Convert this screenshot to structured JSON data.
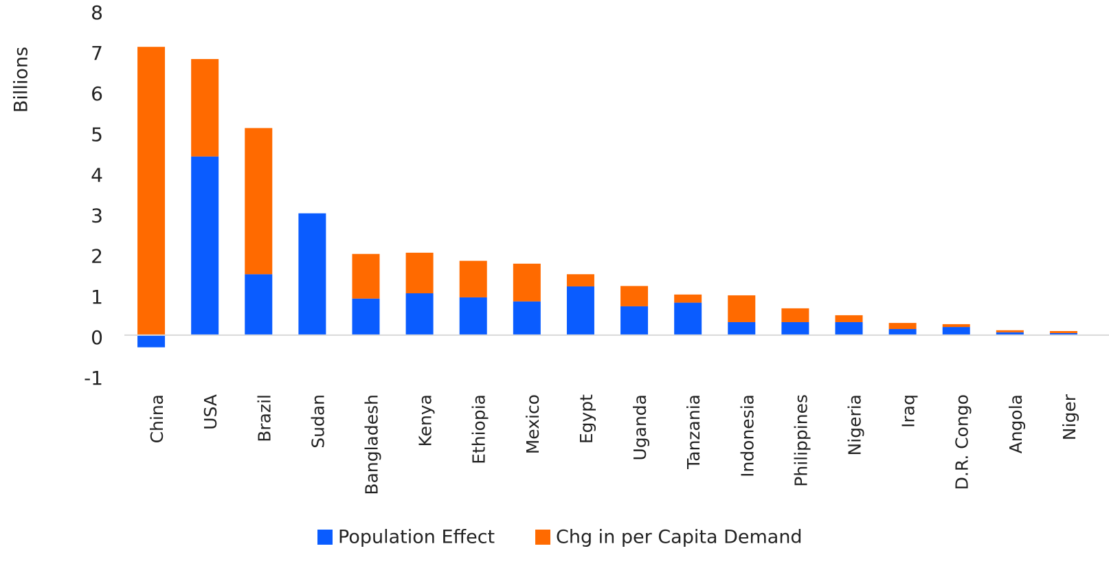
{
  "chart_data": {
    "type": "stacked_bar",
    "y_label": "Billions",
    "categories": [
      "China",
      "USA",
      "Brazil",
      "Sudan",
      "Bangladesh",
      "Kenya",
      "Ethiopia",
      "Mexico",
      "Egypt",
      "Uganda",
      "Tanzania",
      "Indonesia",
      "Philippines",
      "Nigeria",
      "Iraq",
      "D.R. Congo",
      "Angola",
      "Niger"
    ],
    "series": [
      {
        "name": "Population Effect",
        "color": "#0a5cff",
        "values": [
          -0.3,
          4.4,
          1.5,
          3.0,
          0.9,
          1.03,
          0.93,
          0.83,
          1.2,
          0.71,
          0.8,
          0.32,
          0.32,
          0.32,
          0.15,
          0.2,
          0.07,
          0.05
        ]
      },
      {
        "name": "Chg in per Capita Demand",
        "color": "#ff6a00",
        "values": [
          7.1,
          2.4,
          3.6,
          0,
          1.1,
          1.0,
          0.9,
          0.93,
          0.3,
          0.5,
          0.2,
          0.66,
          0.34,
          0.17,
          0.15,
          0.07,
          0.05,
          0.05
        ]
      }
    ],
    "ylim": [
      -1,
      8
    ],
    "yticks": [
      -1,
      0,
      1,
      2,
      3,
      4,
      5,
      6,
      7,
      8
    ],
    "legend": "bottom"
  }
}
